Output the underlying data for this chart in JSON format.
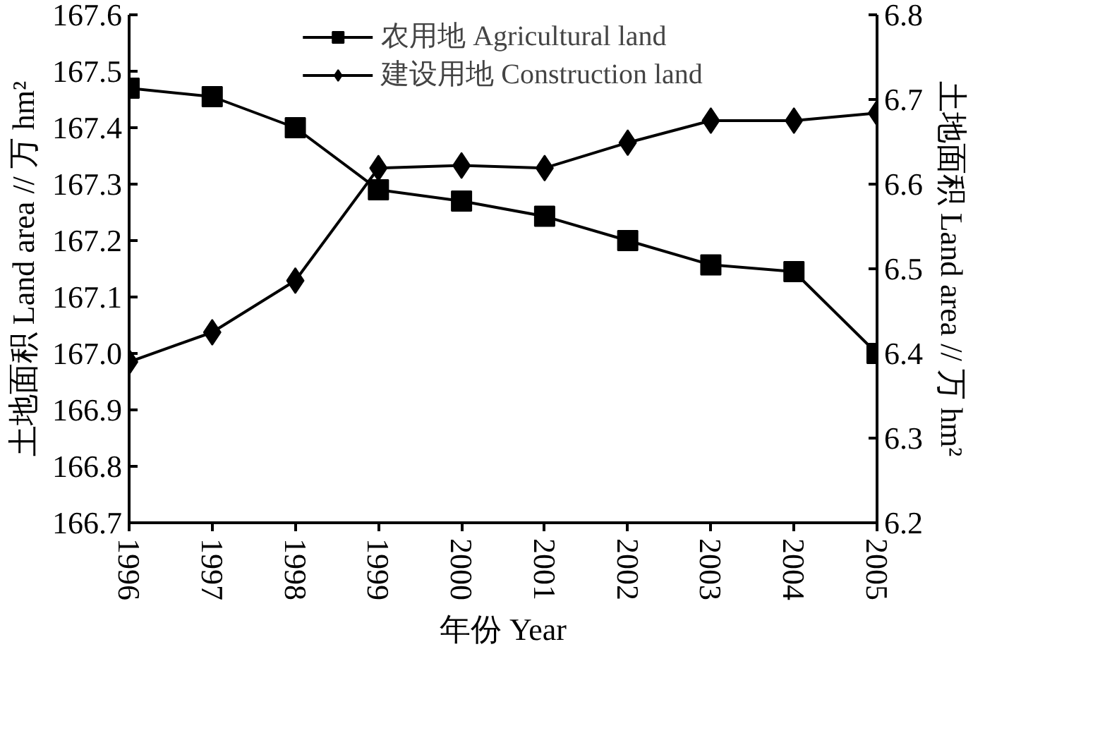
{
  "chart_data": {
    "type": "line",
    "xlabel": "年份 Year",
    "ylabel": "土地面积 Land area // 万 hm²",
    "y2label": "土地面积 Land area // 万 hm²",
    "x": [
      1996,
      1997,
      1998,
      1999,
      2000,
      2001,
      2002,
      2003,
      2004,
      2005
    ],
    "series": [
      {
        "name": "农用地 Agricultural land",
        "color": "#000000",
        "marker": "square",
        "values": [
          167.47,
          167.455,
          167.4,
          167.29,
          167.27,
          167.243,
          167.2,
          167.157,
          167.145,
          167.0
        ]
      },
      {
        "name": "建设用地 Construction land",
        "color": "#000000",
        "marker": "diamond",
        "axis": "y2",
        "values": [
          6.39,
          6.425,
          6.486,
          6.619,
          6.622,
          6.619,
          6.649,
          6.675,
          6.675,
          6.684
        ]
      }
    ],
    "xlim": [
      1996,
      2005
    ],
    "xticks": [
      1996,
      1997,
      1998,
      1999,
      2000,
      2001,
      2002,
      2003,
      2004,
      2005
    ],
    "ylim": [
      166.7,
      167.6
    ],
    "yticks": [
      166.7,
      166.8,
      166.9,
      {
        "value": 167.0,
        "label": "167.0"
      },
      167.1,
      167.2,
      167.3,
      167.4,
      167.5,
      167.6
    ],
    "y2lim": [
      6.2,
      6.8
    ],
    "y2ticks": [
      6.2,
      6.3,
      6.4,
      6.5,
      6.6,
      6.7,
      6.8
    ],
    "grid": false,
    "legend": "top",
    "line_style": "solid"
  }
}
